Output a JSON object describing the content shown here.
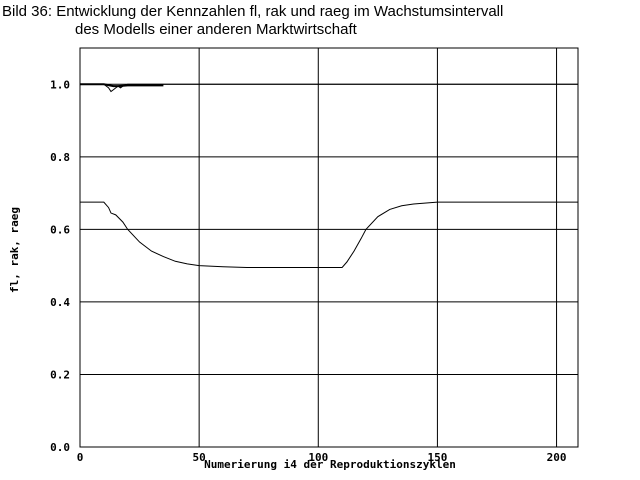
{
  "chart_data": {
    "type": "line",
    "title": [
      "Bild 36: Entwicklung der Kennzahlen fl, rak und raeg im Wachstumsintervall",
      "des Modells einer anderen Marktwirtschaft"
    ],
    "x_label": "Numerierung i4 der Reproduktionszyklen",
    "y_label": "fl, rak, raeg",
    "xlim": [
      0,
      209
    ],
    "ylim": [
      0,
      1.1
    ],
    "xticks": [
      0,
      50,
      100,
      150,
      200
    ],
    "yticks": [
      {
        "value": 0,
        "label": "0.0"
      },
      0.2,
      0.4,
      0.6,
      0.8,
      {
        "value": 1,
        "label": "1.0"
      }
    ],
    "grid": true,
    "series": [
      {
        "color": "#000000",
        "x": [
          0,
          10,
          12,
          13,
          14,
          15,
          16,
          17,
          18,
          20,
          209
        ],
        "values": [
          1,
          1,
          0.99,
          0.98,
          0.985,
          0.99,
          0.995,
          0.99,
          0.995,
          1,
          1
        ]
      },
      {
        "color": "#000000",
        "x": [
          0,
          10,
          14,
          16,
          20,
          25,
          30,
          35
        ],
        "values": [
          1,
          1,
          0.995,
          0.995,
          0.997,
          0.997,
          0.997,
          0.997
        ]
      },
      {
        "color": "#000000",
        "x": [
          0,
          10,
          12,
          13,
          15,
          18,
          20,
          25,
          30,
          35,
          40,
          45,
          50,
          60,
          70,
          100,
          110,
          112,
          115,
          118,
          120,
          125,
          130,
          135,
          140,
          150,
          209
        ],
        "values": [
          0.675,
          0.675,
          0.66,
          0.645,
          0.64,
          0.62,
          0.6,
          0.565,
          0.54,
          0.525,
          0.512,
          0.505,
          0.5,
          0.497,
          0.495,
          0.495,
          0.495,
          0.51,
          0.54,
          0.575,
          0.6,
          0.635,
          0.655,
          0.665,
          0.67,
          0.675,
          0.675
        ]
      }
    ]
  }
}
